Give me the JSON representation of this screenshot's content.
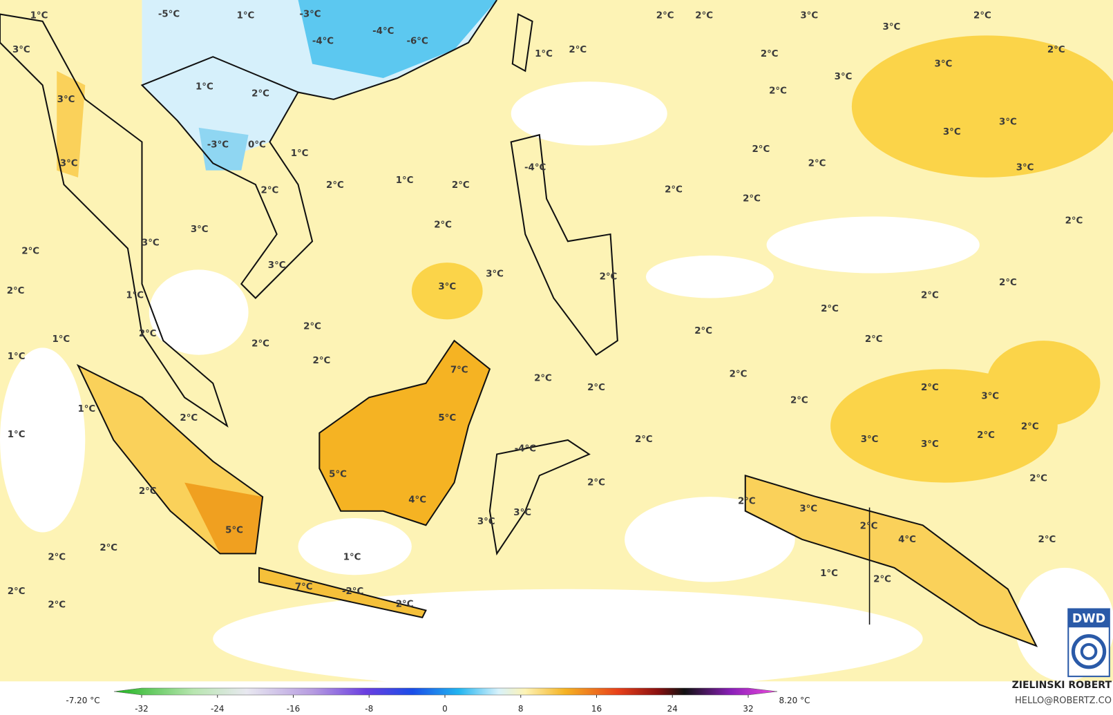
{
  "map": {
    "labels": [
      "-5°C",
      "1°C",
      "1°C",
      "-3°C",
      "-4°C",
      "-6°C",
      "-4°C",
      "1°C",
      "2°C",
      "2°C",
      "2°C",
      "3°C",
      "3°C",
      "2°C",
      "2°C",
      "2°C",
      "3°C",
      "3°C",
      "2°C",
      "3°C",
      "3°C",
      "1°C",
      "2°C",
      "3°C",
      "3°C",
      "3°C",
      "2°C",
      "2°C",
      "-3°C",
      "0°C",
      "1°C",
      "3°C",
      "-4°C",
      "2°C",
      "1°C",
      "2°C",
      "2°C",
      "2°C",
      "2°C",
      "2°C",
      "2°C",
      "3°C",
      "3°C",
      "2°C",
      "3°C",
      "3°C",
      "2°C",
      "3°C",
      "2°C",
      "1°C",
      "2°C",
      "2°C",
      "2°C",
      "2°C",
      "2°C",
      "2°C",
      "2°C",
      "1°C",
      "2°C",
      "1°C",
      "2°C",
      "7°C",
      "2°C",
      "2°C",
      "2°C",
      "2°C",
      "3°C",
      "2°C",
      "1°C",
      "2°C",
      "5°C",
      "1°C",
      "3°C",
      "3°C",
      "2°C",
      "2°C",
      "-4°C",
      "2°C",
      "5°C",
      "2°C",
      "2°C",
      "2°C",
      "4°C",
      "2°C",
      "3°C",
      "3°C",
      "3°C",
      "2°C",
      "4°C",
      "5°C",
      "2°C",
      "2°C",
      "2°C",
      "1°C",
      "1°C",
      "2°C",
      "2°C",
      "7°C",
      "-2°C",
      "2°C",
      "2°C"
    ]
  },
  "colorbar": {
    "min_label": "-7.20 °C",
    "max_label": "8.20 °C",
    "ticks": [
      -32,
      -24,
      -16,
      -8,
      0,
      8,
      16,
      24,
      32
    ]
  },
  "credit": {
    "name": "ZIELINSKI ROBERT",
    "email": "HELLO@ROBERTZ.CO"
  },
  "logo": "DWD"
}
